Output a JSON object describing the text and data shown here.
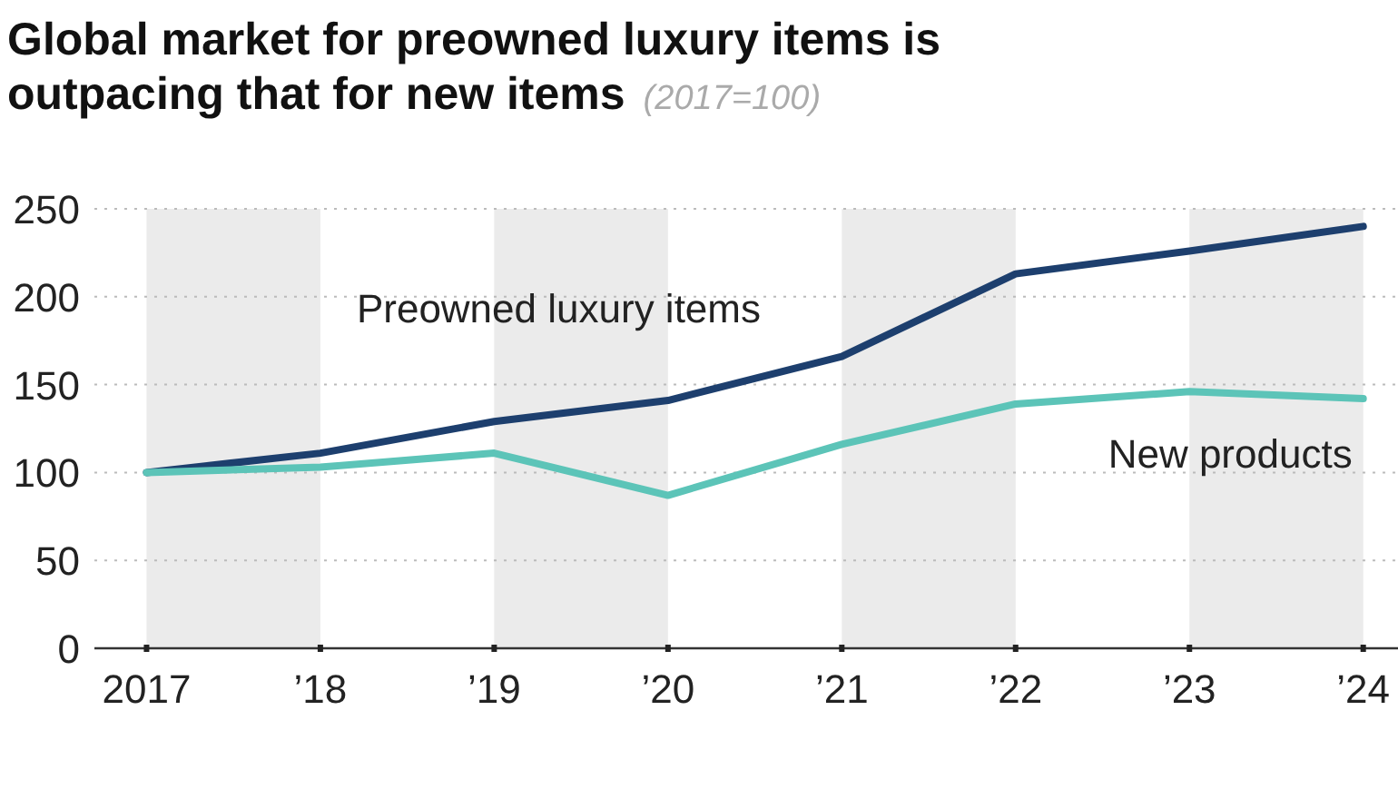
{
  "chart_data": {
    "type": "line",
    "title": "Global market for preowned luxury items is outpacing that for new items",
    "subtitle": "(2017=100)",
    "x": [
      2017,
      2018,
      2019,
      2020,
      2021,
      2022,
      2023,
      2024
    ],
    "series": [
      {
        "name": "Preowned luxury items",
        "color": "#1d3f6e",
        "values": [
          100,
          111,
          129,
          141,
          166,
          213,
          226,
          240
        ]
      },
      {
        "name": "New products",
        "color": "#5cc4b8",
        "values": [
          100,
          103,
          111,
          87,
          116,
          139,
          146,
          142
        ]
      }
    ],
    "xlim": [
      2016.7,
      2024.2
    ],
    "xticks": [
      {
        "value": 2017,
        "label": "2017"
      },
      {
        "value": 2018,
        "label": "’18"
      },
      {
        "value": 2019,
        "label": "’19"
      },
      {
        "value": 2020,
        "label": "’20"
      },
      {
        "value": 2021,
        "label": "’21"
      },
      {
        "value": 2022,
        "label": "’22"
      },
      {
        "value": 2023,
        "label": "’23"
      },
      {
        "value": 2024,
        "label": "’24"
      }
    ],
    "ylim": [
      0,
      250
    ],
    "yticks": [
      0,
      50,
      100,
      150,
      200,
      250
    ],
    "bands": [
      {
        "axis": "x",
        "from": 2017,
        "to": 2018,
        "color": "#ebebeb"
      },
      {
        "axis": "x",
        "from": 2019,
        "to": 2020,
        "color": "#ebebeb"
      },
      {
        "axis": "x",
        "from": 2021,
        "to": 2022,
        "color": "#ebebeb"
      },
      {
        "axis": "x",
        "from": 2023,
        "to": 2024,
        "color": "#ebebeb"
      }
    ],
    "grid": "y",
    "legend": false,
    "line_style": "solid",
    "marker": "none"
  }
}
